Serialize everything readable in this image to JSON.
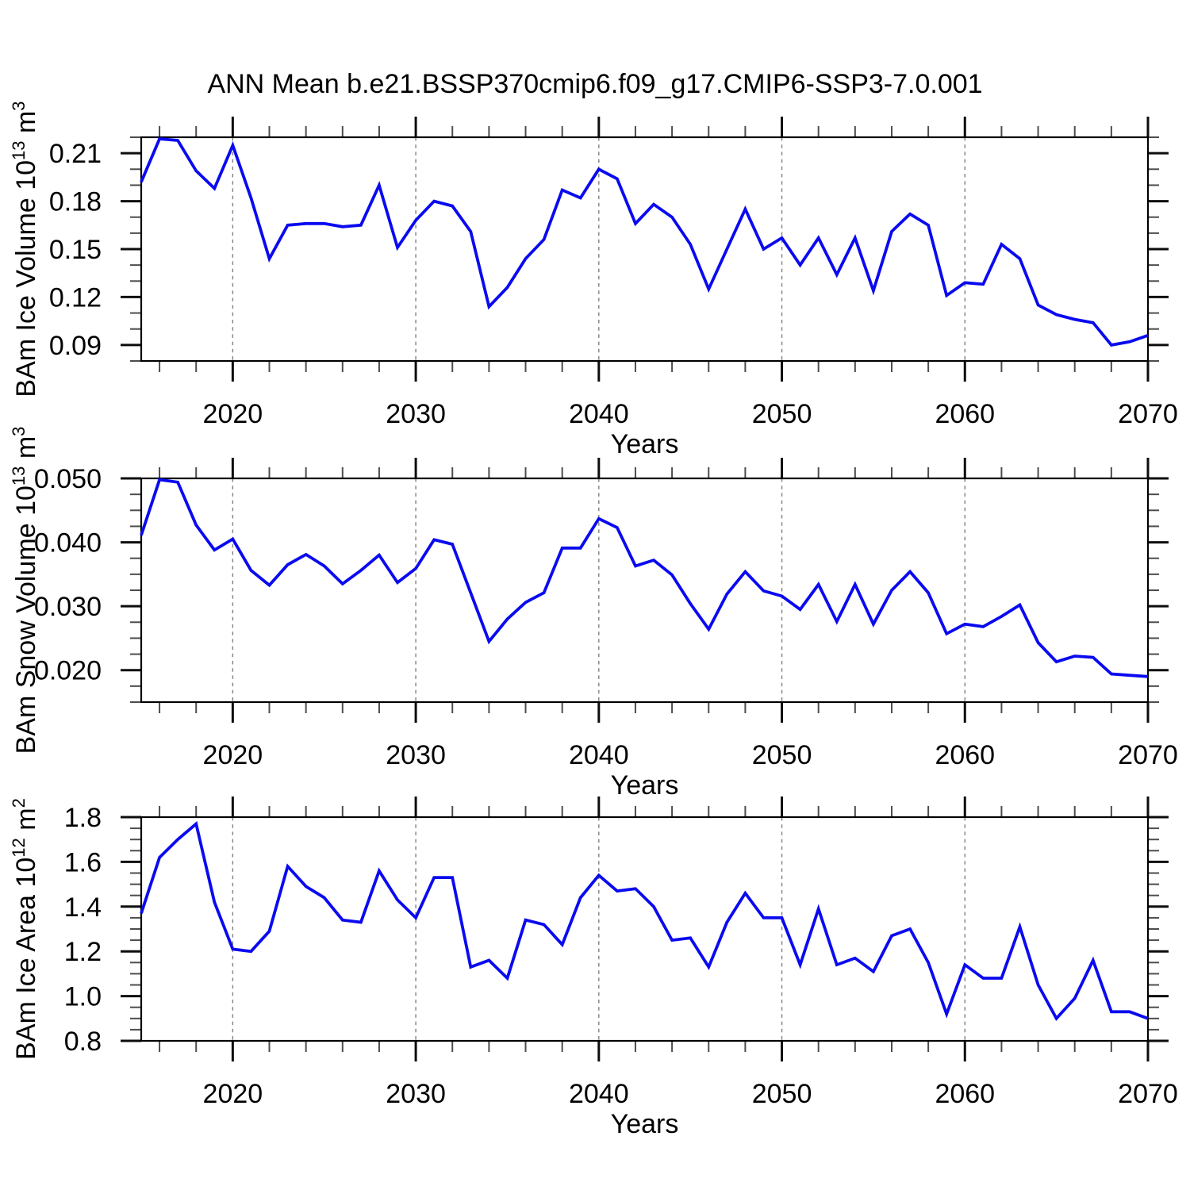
{
  "chart_data": {
    "type": "line",
    "title": "ANN Mean b.e21.BSSP370cmip6.f09_g17.CMIP6-SSP3-7.0.001",
    "xlabel": "Years",
    "legend": "none",
    "grid": "vertical-dashed",
    "x_range": [
      2015,
      2070
    ],
    "x_major_ticks": [
      2020,
      2030,
      2040,
      2050,
      2060,
      2070
    ],
    "x_tick_labels": [
      "2020",
      "2030",
      "2040",
      "2050",
      "2060",
      "2070"
    ],
    "x_minor_step": 2,
    "grid_years": [
      2020,
      2030,
      2040,
      2050,
      2060
    ],
    "colors": {
      "line": "#0a0af0",
      "grid": "#808080",
      "axis": "#000000",
      "minor_tick": "#4d4d4d",
      "major_tick": "#0d0d0d"
    },
    "x": [
      2015,
      2016,
      2017,
      2018,
      2019,
      2020,
      2021,
      2022,
      2023,
      2024,
      2025,
      2026,
      2027,
      2028,
      2029,
      2030,
      2031,
      2032,
      2033,
      2034,
      2035,
      2036,
      2037,
      2038,
      2039,
      2040,
      2041,
      2042,
      2043,
      2044,
      2045,
      2046,
      2047,
      2048,
      2049,
      2050,
      2051,
      2052,
      2053,
      2054,
      2055,
      2056,
      2057,
      2058,
      2059,
      2060,
      2061,
      2062,
      2063,
      2064,
      2065,
      2066,
      2067,
      2068,
      2069,
      2070
    ],
    "panels": [
      {
        "id": "ice-volume",
        "name": "BAm Ice Volume",
        "ylabel": "BAm Ice Volume 10¹³ m³",
        "ylabel_parts": [
          {
            "t": "BAm Ice Volume 10"
          },
          {
            "t": "13",
            "sup": true
          },
          {
            "t": " m"
          },
          {
            "t": "3",
            "sup": true
          }
        ],
        "y_range": [
          0.08,
          0.22
        ],
        "y_major_ticks": [
          0.09,
          0.12,
          0.15,
          0.18,
          0.21
        ],
        "y_tick_labels": [
          "0.09",
          "0.12",
          "0.15",
          "0.18",
          "0.21"
        ],
        "y_minor_step": 0.01,
        "values": [
          0.192,
          0.219,
          0.218,
          0.199,
          0.188,
          0.215,
          0.182,
          0.144,
          0.165,
          0.166,
          0.166,
          0.164,
          0.165,
          0.19,
          0.151,
          0.168,
          0.18,
          0.177,
          0.161,
          0.114,
          0.126,
          0.144,
          0.156,
          0.187,
          0.182,
          0.2,
          0.194,
          0.166,
          0.178,
          0.17,
          0.153,
          0.125,
          0.15,
          0.175,
          0.15,
          0.157,
          0.14,
          0.157,
          0.134,
          0.157,
          0.124,
          0.161,
          0.172,
          0.165,
          0.121,
          0.129,
          0.128,
          0.153,
          0.144,
          0.115,
          0.109,
          0.106,
          0.104,
          0.09,
          0.092,
          0.096
        ]
      },
      {
        "id": "snow-volume",
        "name": "BAm Snow Volume",
        "ylabel": "BAm Snow Volume 10¹³ m³",
        "ylabel_parts": [
          {
            "t": "BAm Snow Volume 10"
          },
          {
            "t": "13",
            "sup": true
          },
          {
            "t": " m"
          },
          {
            "t": "3",
            "sup": true
          }
        ],
        "y_range": [
          0.015,
          0.05
        ],
        "y_major_ticks": [
          0.02,
          0.03,
          0.04,
          0.05
        ],
        "y_tick_labels": [
          "0.020",
          "0.030",
          "0.040",
          "0.050"
        ],
        "y_minor_step": 0.0025,
        "values": [
          0.0411,
          0.0498,
          0.0494,
          0.0427,
          0.0388,
          0.0405,
          0.0356,
          0.0333,
          0.0365,
          0.0381,
          0.0363,
          0.0335,
          0.0356,
          0.038,
          0.0337,
          0.0359,
          0.0404,
          0.0397,
          0.0321,
          0.0245,
          0.028,
          0.0306,
          0.0321,
          0.0391,
          0.0391,
          0.0437,
          0.0423,
          0.0363,
          0.0372,
          0.0349,
          0.0304,
          0.0264,
          0.0319,
          0.0354,
          0.0324,
          0.0316,
          0.0295,
          0.0334,
          0.0276,
          0.0334,
          0.0272,
          0.0325,
          0.0354,
          0.0321,
          0.0257,
          0.0272,
          0.0268,
          0.0284,
          0.0302,
          0.0243,
          0.0213,
          0.0222,
          0.022,
          0.0194,
          0.0192,
          0.019
        ]
      },
      {
        "id": "ice-area",
        "name": "BAm Ice Area",
        "ylabel": "BAm Ice Area 10¹² m²",
        "ylabel_parts": [
          {
            "t": "BAm Ice Area 10"
          },
          {
            "t": "12",
            "sup": true
          },
          {
            "t": " m"
          },
          {
            "t": "2",
            "sup": true
          }
        ],
        "y_range": [
          0.8,
          1.8
        ],
        "y_major_ticks": [
          0.8,
          1.0,
          1.2,
          1.4,
          1.6,
          1.8
        ],
        "y_tick_labels": [
          "0.8",
          "1.0",
          "1.2",
          "1.4",
          "1.6",
          "1.8"
        ],
        "y_minor_step": 0.05,
        "values": [
          1.37,
          1.62,
          1.7,
          1.77,
          1.42,
          1.21,
          1.2,
          1.29,
          1.58,
          1.49,
          1.44,
          1.34,
          1.33,
          1.56,
          1.43,
          1.35,
          1.53,
          1.53,
          1.13,
          1.16,
          1.08,
          1.34,
          1.32,
          1.23,
          1.44,
          1.54,
          1.47,
          1.48,
          1.4,
          1.25,
          1.26,
          1.13,
          1.33,
          1.46,
          1.35,
          1.35,
          1.14,
          1.39,
          1.14,
          1.17,
          1.11,
          1.27,
          1.3,
          1.15,
          0.92,
          1.14,
          1.08,
          1.08,
          1.31,
          1.05,
          0.9,
          0.99,
          1.16,
          0.93,
          0.93,
          0.9
        ]
      }
    ]
  }
}
